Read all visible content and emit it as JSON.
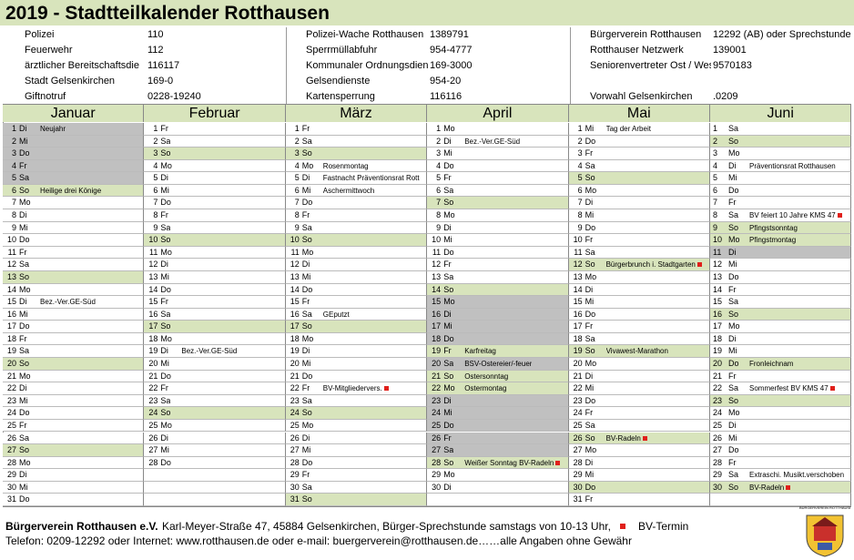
{
  "header": {
    "title": "2019 - Stadtteilkalender Rotthausen"
  },
  "colors": {
    "green": "#d8e4bc",
    "gray": "#c0c0c0",
    "bv": "#e0201b"
  },
  "contacts": [
    [
      [
        "Polizei",
        "110"
      ],
      [
        "Feuerwehr",
        "112"
      ],
      [
        "ärztlicher Bereitschaftsdie",
        "116117"
      ],
      [
        "Stadt Gelsenkirchen",
        "169-0"
      ],
      [
        "Giftnotruf",
        "0228-19240"
      ]
    ],
    [
      [
        "Polizei-Wache Rotthausen",
        "1389791"
      ],
      [
        "Sperrmüllabfuhr",
        "954-4777"
      ],
      [
        "Kommunaler Ordnungsdiens",
        "169-3000"
      ],
      [
        "Gelsendienste",
        "954-20"
      ],
      [
        "Kartensperrung",
        "116116"
      ]
    ],
    [
      [
        "Bürgerverein Rotthausen",
        "12292 (AB) oder Sprechstunde"
      ],
      [
        "Rotthauser Netzwerk",
        "139001"
      ],
      [
        "Seniorenvertreter Ost / Wes",
        "9570183"
      ],
      null,
      [
        "Vorwahl Gelsenkirchen",
        ".0209"
      ]
    ]
  ],
  "months": [
    {
      "name": "Januar",
      "days": [
        {
          "d": 1,
          "w": "Di",
          "n": "Neujahr",
          "s": "gray"
        },
        {
          "d": 2,
          "w": "Mi",
          "s": "gray"
        },
        {
          "d": 3,
          "w": "Do",
          "s": "gray"
        },
        {
          "d": 4,
          "w": "Fr",
          "s": "gray"
        },
        {
          "d": 5,
          "w": "Sa",
          "s": "gray"
        },
        {
          "d": 6,
          "w": "So",
          "n": "Heilige drei Könige",
          "s": "green"
        },
        {
          "d": 7,
          "w": "Mo"
        },
        {
          "d": 8,
          "w": "Di"
        },
        {
          "d": 9,
          "w": "Mi"
        },
        {
          "d": 10,
          "w": "Do"
        },
        {
          "d": 11,
          "w": "Fr"
        },
        {
          "d": 12,
          "w": "Sa"
        },
        {
          "d": 13,
          "w": "So",
          "s": "green"
        },
        {
          "d": 14,
          "w": "Mo"
        },
        {
          "d": 15,
          "w": "Di",
          "n": "Bez.-Ver.GE-Süd"
        },
        {
          "d": 16,
          "w": "Mi"
        },
        {
          "d": 17,
          "w": "Do"
        },
        {
          "d": 18,
          "w": "Fr"
        },
        {
          "d": 19,
          "w": "Sa"
        },
        {
          "d": 20,
          "w": "So",
          "s": "green"
        },
        {
          "d": 21,
          "w": "Mo"
        },
        {
          "d": 22,
          "w": "Di"
        },
        {
          "d": 23,
          "w": "Mi"
        },
        {
          "d": 24,
          "w": "Do"
        },
        {
          "d": 25,
          "w": "Fr"
        },
        {
          "d": 26,
          "w": "Sa"
        },
        {
          "d": 27,
          "w": "So",
          "s": "green"
        },
        {
          "d": 28,
          "w": "Mo"
        },
        {
          "d": 29,
          "w": "Di"
        },
        {
          "d": 30,
          "w": "Mi"
        },
        {
          "d": 31,
          "w": "Do"
        }
      ]
    },
    {
      "name": "Februar",
      "days": [
        {
          "d": 1,
          "w": "Fr"
        },
        {
          "d": 2,
          "w": "Sa"
        },
        {
          "d": 3,
          "w": "So",
          "s": "green"
        },
        {
          "d": 4,
          "w": "Mo"
        },
        {
          "d": 5,
          "w": "Di"
        },
        {
          "d": 6,
          "w": "Mi"
        },
        {
          "d": 7,
          "w": "Do"
        },
        {
          "d": 8,
          "w": "Fr"
        },
        {
          "d": 9,
          "w": "Sa"
        },
        {
          "d": 10,
          "w": "So",
          "s": "green"
        },
        {
          "d": 11,
          "w": "Mo"
        },
        {
          "d": 12,
          "w": "Di"
        },
        {
          "d": 13,
          "w": "Mi"
        },
        {
          "d": 14,
          "w": "Do"
        },
        {
          "d": 15,
          "w": "Fr"
        },
        {
          "d": 16,
          "w": "Sa"
        },
        {
          "d": 17,
          "w": "So",
          "s": "green"
        },
        {
          "d": 18,
          "w": "Mo"
        },
        {
          "d": 19,
          "w": "Di",
          "n": "Bez.-Ver.GE-Süd"
        },
        {
          "d": 20,
          "w": "Mi"
        },
        {
          "d": 21,
          "w": "Do"
        },
        {
          "d": 22,
          "w": "Fr"
        },
        {
          "d": 23,
          "w": "Sa"
        },
        {
          "d": 24,
          "w": "So",
          "s": "green"
        },
        {
          "d": 25,
          "w": "Mo"
        },
        {
          "d": 26,
          "w": "Di"
        },
        {
          "d": 27,
          "w": "Mi"
        },
        {
          "d": 28,
          "w": "Do"
        }
      ]
    },
    {
      "name": "März",
      "days": [
        {
          "d": 1,
          "w": "Fr"
        },
        {
          "d": 2,
          "w": "Sa"
        },
        {
          "d": 3,
          "w": "So",
          "s": "green"
        },
        {
          "d": 4,
          "w": "Mo",
          "n": "Rosenmontag"
        },
        {
          "d": 5,
          "w": "Di",
          "n": "Fastnacht Präventionsrat Rott"
        },
        {
          "d": 6,
          "w": "Mi",
          "n": "Aschermittwoch"
        },
        {
          "d": 7,
          "w": "Do"
        },
        {
          "d": 8,
          "w": "Fr"
        },
        {
          "d": 9,
          "w": "Sa"
        },
        {
          "d": 10,
          "w": "So",
          "s": "green"
        },
        {
          "d": 11,
          "w": "Mo"
        },
        {
          "d": 12,
          "w": "Di"
        },
        {
          "d": 13,
          "w": "Mi"
        },
        {
          "d": 14,
          "w": "Do"
        },
        {
          "d": 15,
          "w": "Fr"
        },
        {
          "d": 16,
          "w": "Sa",
          "n": "GEputzt"
        },
        {
          "d": 17,
          "w": "So",
          "s": "green"
        },
        {
          "d": 18,
          "w": "Mo"
        },
        {
          "d": 19,
          "w": "Di"
        },
        {
          "d": 20,
          "w": "Mi"
        },
        {
          "d": 21,
          "w": "Do"
        },
        {
          "d": 22,
          "w": "Fr",
          "n": "BV-Mitgliedervers.",
          "bv": true
        },
        {
          "d": 23,
          "w": "Sa"
        },
        {
          "d": 24,
          "w": "So",
          "s": "green"
        },
        {
          "d": 25,
          "w": "Mo"
        },
        {
          "d": 26,
          "w": "Di"
        },
        {
          "d": 27,
          "w": "Mi"
        },
        {
          "d": 28,
          "w": "Do"
        },
        {
          "d": 29,
          "w": "Fr"
        },
        {
          "d": 30,
          "w": "Sa"
        },
        {
          "d": 31,
          "w": "So",
          "s": "green"
        }
      ]
    },
    {
      "name": "April",
      "days": [
        {
          "d": 1,
          "w": "Mo"
        },
        {
          "d": 2,
          "w": "Di",
          "n": "Bez.-Ver.GE-Süd"
        },
        {
          "d": 3,
          "w": "Mi"
        },
        {
          "d": 4,
          "w": "Do"
        },
        {
          "d": 5,
          "w": "Fr"
        },
        {
          "d": 6,
          "w": "Sa"
        },
        {
          "d": 7,
          "w": "So",
          "s": "green"
        },
        {
          "d": 8,
          "w": "Mo"
        },
        {
          "d": 9,
          "w": "Di"
        },
        {
          "d": 10,
          "w": "Mi"
        },
        {
          "d": 11,
          "w": "Do"
        },
        {
          "d": 12,
          "w": "Fr"
        },
        {
          "d": 13,
          "w": "Sa"
        },
        {
          "d": 14,
          "w": "So",
          "s": "green"
        },
        {
          "d": 15,
          "w": "Mo",
          "s": "gray"
        },
        {
          "d": 16,
          "w": "Di",
          "s": "gray"
        },
        {
          "d": 17,
          "w": "Mi",
          "s": "gray"
        },
        {
          "d": 18,
          "w": "Do",
          "s": "gray"
        },
        {
          "d": 19,
          "w": "Fr",
          "n": "Karfreitag",
          "s": "green"
        },
        {
          "d": 20,
          "w": "Sa",
          "n": "BSV-Ostereier/-feuer",
          "s": "gray"
        },
        {
          "d": 21,
          "w": "So",
          "n": "Ostersonntag",
          "s": "green"
        },
        {
          "d": 22,
          "w": "Mo",
          "n": "Ostermontag",
          "s": "green"
        },
        {
          "d": 23,
          "w": "Di",
          "s": "gray"
        },
        {
          "d": 24,
          "w": "Mi",
          "s": "gray"
        },
        {
          "d": 25,
          "w": "Do",
          "s": "gray"
        },
        {
          "d": 26,
          "w": "Fr",
          "s": "gray"
        },
        {
          "d": 27,
          "w": "Sa",
          "s": "gray"
        },
        {
          "d": 28,
          "w": "So",
          "n": "Weißer Sonntag BV-Radeln",
          "s": "green",
          "bv": true
        },
        {
          "d": 29,
          "w": "Mo"
        },
        {
          "d": 30,
          "w": "Di"
        }
      ]
    },
    {
      "name": "Mai",
      "days": [
        {
          "d": 1,
          "w": "Mi",
          "n": "Tag der Arbeit"
        },
        {
          "d": 2,
          "w": "Do"
        },
        {
          "d": 3,
          "w": "Fr"
        },
        {
          "d": 4,
          "w": "Sa"
        },
        {
          "d": 5,
          "w": "So",
          "s": "green"
        },
        {
          "d": 6,
          "w": "Mo"
        },
        {
          "d": 7,
          "w": "Di"
        },
        {
          "d": 8,
          "w": "Mi"
        },
        {
          "d": 9,
          "w": "Do"
        },
        {
          "d": 10,
          "w": "Fr"
        },
        {
          "d": 11,
          "w": "Sa"
        },
        {
          "d": 12,
          "w": "So",
          "n": "Bürgerbrunch i. Stadtgarten",
          "s": "green",
          "bv": true
        },
        {
          "d": 13,
          "w": "Mo"
        },
        {
          "d": 14,
          "w": "Di"
        },
        {
          "d": 15,
          "w": "Mi"
        },
        {
          "d": 16,
          "w": "Do"
        },
        {
          "d": 17,
          "w": "Fr"
        },
        {
          "d": 18,
          "w": "Sa"
        },
        {
          "d": 19,
          "w": "So",
          "n": "Vivawest-Marathon",
          "s": "green"
        },
        {
          "d": 20,
          "w": "Mo"
        },
        {
          "d": 21,
          "w": "Di"
        },
        {
          "d": 22,
          "w": "Mi"
        },
        {
          "d": 23,
          "w": "Do"
        },
        {
          "d": 24,
          "w": "Fr"
        },
        {
          "d": 25,
          "w": "Sa"
        },
        {
          "d": 26,
          "w": "So",
          "n": "BV-Radeln",
          "s": "green",
          "bv": true
        },
        {
          "d": 27,
          "w": "Mo"
        },
        {
          "d": 28,
          "w": "Di"
        },
        {
          "d": 29,
          "w": "Mi"
        },
        {
          "d": 30,
          "w": "Do",
          "s": "green"
        },
        {
          "d": 31,
          "w": "Fr"
        }
      ]
    },
    {
      "name": "Juni",
      "split": true,
      "days": [
        {
          "d": 1,
          "w": "Sa"
        },
        {
          "d": 2,
          "w": "So",
          "s": "green"
        },
        {
          "d": 3,
          "w": "Mo"
        },
        {
          "d": 4,
          "w": "Di",
          "n": "Präventionsrat Rotthausen"
        },
        {
          "d": 5,
          "w": "Mi"
        },
        {
          "d": 6,
          "w": "Do"
        },
        {
          "d": 7,
          "w": "Fr"
        },
        {
          "d": 8,
          "w": "Sa",
          "n": "BV feiert 10 Jahre KMS 47",
          "bv": true
        },
        {
          "d": 9,
          "w": "So",
          "n": "Pfingstsonntag",
          "s": "green"
        },
        {
          "d": 10,
          "w": "Mo",
          "n": "Pfingstmontag",
          "s": "green"
        },
        {
          "d": 11,
          "w": "Di",
          "s": "gray"
        },
        {
          "d": 12,
          "w": "Mi"
        },
        {
          "d": 13,
          "w": "Do"
        },
        {
          "d": 14,
          "w": "Fr"
        },
        {
          "d": 15,
          "w": "Sa"
        },
        {
          "d": 16,
          "w": "So",
          "s": "green"
        },
        {
          "d": 17,
          "w": "Mo"
        },
        {
          "d": 18,
          "w": "Di"
        },
        {
          "d": 19,
          "w": "Mi"
        },
        {
          "d": 20,
          "w": "Do",
          "n": "Fronleichnam",
          "s": "green"
        },
        {
          "d": 21,
          "w": "Fr"
        },
        {
          "d": 22,
          "w": "Sa",
          "n": "Sommerfest BV KMS 47",
          "bv": true
        },
        {
          "d": 23,
          "w": "So",
          "s": "green"
        },
        {
          "d": 24,
          "w": "Mo"
        },
        {
          "d": 25,
          "w": "Di"
        },
        {
          "d": 26,
          "w": "Mi"
        },
        {
          "d": 27,
          "w": "Do"
        },
        {
          "d": 28,
          "w": "Fr"
        },
        {
          "d": 29,
          "w": "Sa",
          "n": "Extraschi. Musikt.verschoben"
        },
        {
          "d": 30,
          "w": "So",
          "n": "BV-Radeln",
          "s": "green",
          "bv": true
        }
      ]
    }
  ],
  "footer": {
    "org": "Bürgerverein Rotthausen e.V.",
    "address": "Karl-Meyer-Straße 47, 45884 Gelsenkirchen, Bürger-Sprechstunde samstags von 10-13 Uhr,",
    "legend": "BV-Termin",
    "line2": "Telefon: 0209-12292 oder Internet: www.rotthausen.de oder e-mail: buergerverein@rotthausen.de……alle Angaben ohne Gewähr",
    "logo": "BÜRGERVEREIN ROTTHAUSEN"
  }
}
